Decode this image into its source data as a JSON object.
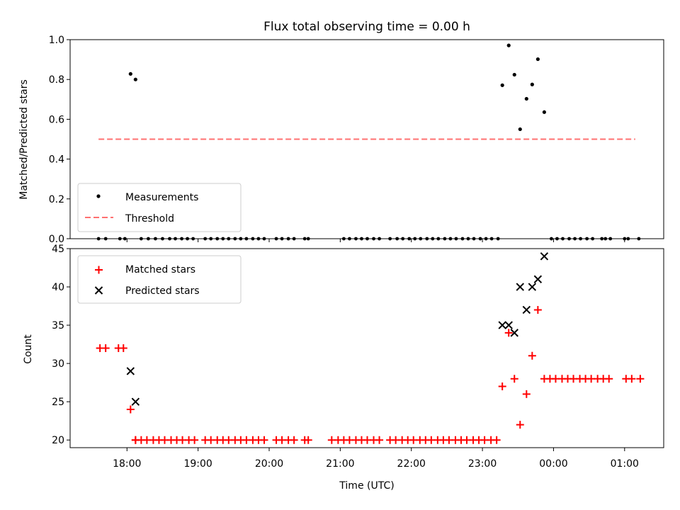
{
  "figure": {
    "title": "Flux total observing time = 0.00 h"
  },
  "chart_data": [
    {
      "type": "scatter",
      "ylabel": "Matched/Predicted stars",
      "ylim": [
        0,
        1.0
      ],
      "yticks": [
        "0.0",
        "0.2",
        "0.4",
        "0.6",
        "0.8",
        "1.0"
      ],
      "legend": {
        "placement": "lower-left",
        "entries": [
          {
            "label": "Measurements"
          },
          {
            "label": "Threshold"
          }
        ]
      },
      "threshold": {
        "y": 0.5,
        "x_start": 17.6,
        "x_end": 25.15,
        "color": "#ff7070"
      },
      "zero_points_x": [
        17.6,
        17.7,
        17.9,
        17.97,
        18.2,
        18.3,
        18.4,
        18.5,
        18.6,
        18.68,
        18.77,
        18.85,
        18.93,
        19.1,
        19.18,
        19.27,
        19.35,
        19.43,
        19.52,
        19.6,
        19.68,
        19.77,
        19.85,
        19.93,
        20.1,
        20.18,
        20.27,
        20.35,
        20.5,
        20.55,
        21.05,
        21.13,
        21.22,
        21.3,
        21.38,
        21.47,
        21.55,
        21.7,
        21.8,
        21.88,
        21.97,
        22.05,
        22.13,
        22.22,
        22.3,
        22.38,
        22.47,
        22.55,
        22.63,
        22.72,
        22.8,
        22.88,
        22.97,
        23.05,
        23.13,
        23.22,
        23.97,
        24.05,
        24.13,
        24.22,
        24.3,
        24.38,
        24.47,
        24.55,
        24.68,
        24.73,
        24.8,
        25.0,
        25.05,
        25.2
      ],
      "measurement_points": [
        {
          "x": 18.05,
          "y": 0.828
        },
        {
          "x": 18.12,
          "y": 0.8
        },
        {
          "x": 23.28,
          "y": 0.771
        },
        {
          "x": 23.37,
          "y": 0.971
        },
        {
          "x": 23.45,
          "y": 0.824
        },
        {
          "x": 23.53,
          "y": 0.55
        },
        {
          "x": 23.62,
          "y": 0.703
        },
        {
          "x": 23.7,
          "y": 0.775
        },
        {
          "x": 23.78,
          "y": 0.902
        },
        {
          "x": 23.87,
          "y": 0.636
        }
      ]
    },
    {
      "type": "scatter",
      "xlabel": "Time (UTC)",
      "ylabel": "Count",
      "ylim": [
        19,
        45
      ],
      "yticks": [
        "20",
        "25",
        "30",
        "35",
        "40",
        "45"
      ],
      "x_tick_labels": [
        "18:00",
        "19:00",
        "20:00",
        "21:00",
        "22:00",
        "23:00",
        "00:00",
        "01:00"
      ],
      "legend": {
        "placement": "upper-left",
        "entries": [
          {
            "label": "Matched stars"
          },
          {
            "label": "Predicted stars"
          }
        ]
      },
      "matched_color": "#ff0000",
      "predicted_color": "#000000",
      "matched": {
        "x": [
          17.62,
          17.7,
          17.88,
          17.95,
          18.05,
          18.12,
          18.12,
          18.2,
          18.28,
          18.37,
          18.45,
          18.53,
          18.62,
          18.7,
          18.78,
          18.87,
          18.95,
          19.1,
          19.18,
          19.27,
          19.35,
          19.43,
          19.52,
          19.6,
          19.68,
          19.77,
          19.85,
          19.93,
          20.1,
          20.18,
          20.27,
          20.35,
          20.5,
          20.55,
          20.88,
          20.97,
          21.05,
          21.13,
          21.22,
          21.3,
          21.38,
          21.47,
          21.55,
          21.7,
          21.78,
          21.87,
          21.95,
          22.03,
          22.12,
          22.2,
          22.28,
          22.37,
          22.45,
          22.53,
          22.62,
          22.7,
          22.78,
          22.87,
          22.95,
          23.03,
          23.12,
          23.2,
          23.28,
          23.37,
          23.45,
          23.53,
          23.62,
          23.7,
          23.78,
          23.87,
          23.95,
          24.03,
          24.12,
          24.2,
          24.28,
          24.37,
          24.45,
          24.53,
          24.62,
          24.7,
          24.78,
          25.02,
          25.1,
          25.22
        ],
        "y": [
          32,
          32,
          32,
          32,
          24,
          20,
          20,
          20,
          20,
          20,
          20,
          20,
          20,
          20,
          20,
          20,
          20,
          20,
          20,
          20,
          20,
          20,
          20,
          20,
          20,
          20,
          20,
          20,
          20,
          20,
          20,
          20,
          20,
          20,
          20,
          20,
          20,
          20,
          20,
          20,
          20,
          20,
          20,
          20,
          20,
          20,
          20,
          20,
          20,
          20,
          20,
          20,
          20,
          20,
          20,
          20,
          20,
          20,
          20,
          20,
          20,
          20,
          27,
          34,
          28,
          22,
          26,
          31,
          37,
          28,
          28,
          28,
          28,
          28,
          28,
          28,
          28,
          28,
          28,
          28,
          28,
          28,
          28,
          28
        ]
      },
      "predicted": [
        {
          "x": 18.05,
          "y": 29
        },
        {
          "x": 18.12,
          "y": 25
        },
        {
          "x": 23.28,
          "y": 35
        },
        {
          "x": 23.37,
          "y": 35
        },
        {
          "x": 23.45,
          "y": 34
        },
        {
          "x": 23.53,
          "y": 40
        },
        {
          "x": 23.62,
          "y": 37
        },
        {
          "x": 23.7,
          "y": 40
        },
        {
          "x": 23.78,
          "y": 41
        },
        {
          "x": 23.87,
          "y": 44
        }
      ]
    }
  ]
}
